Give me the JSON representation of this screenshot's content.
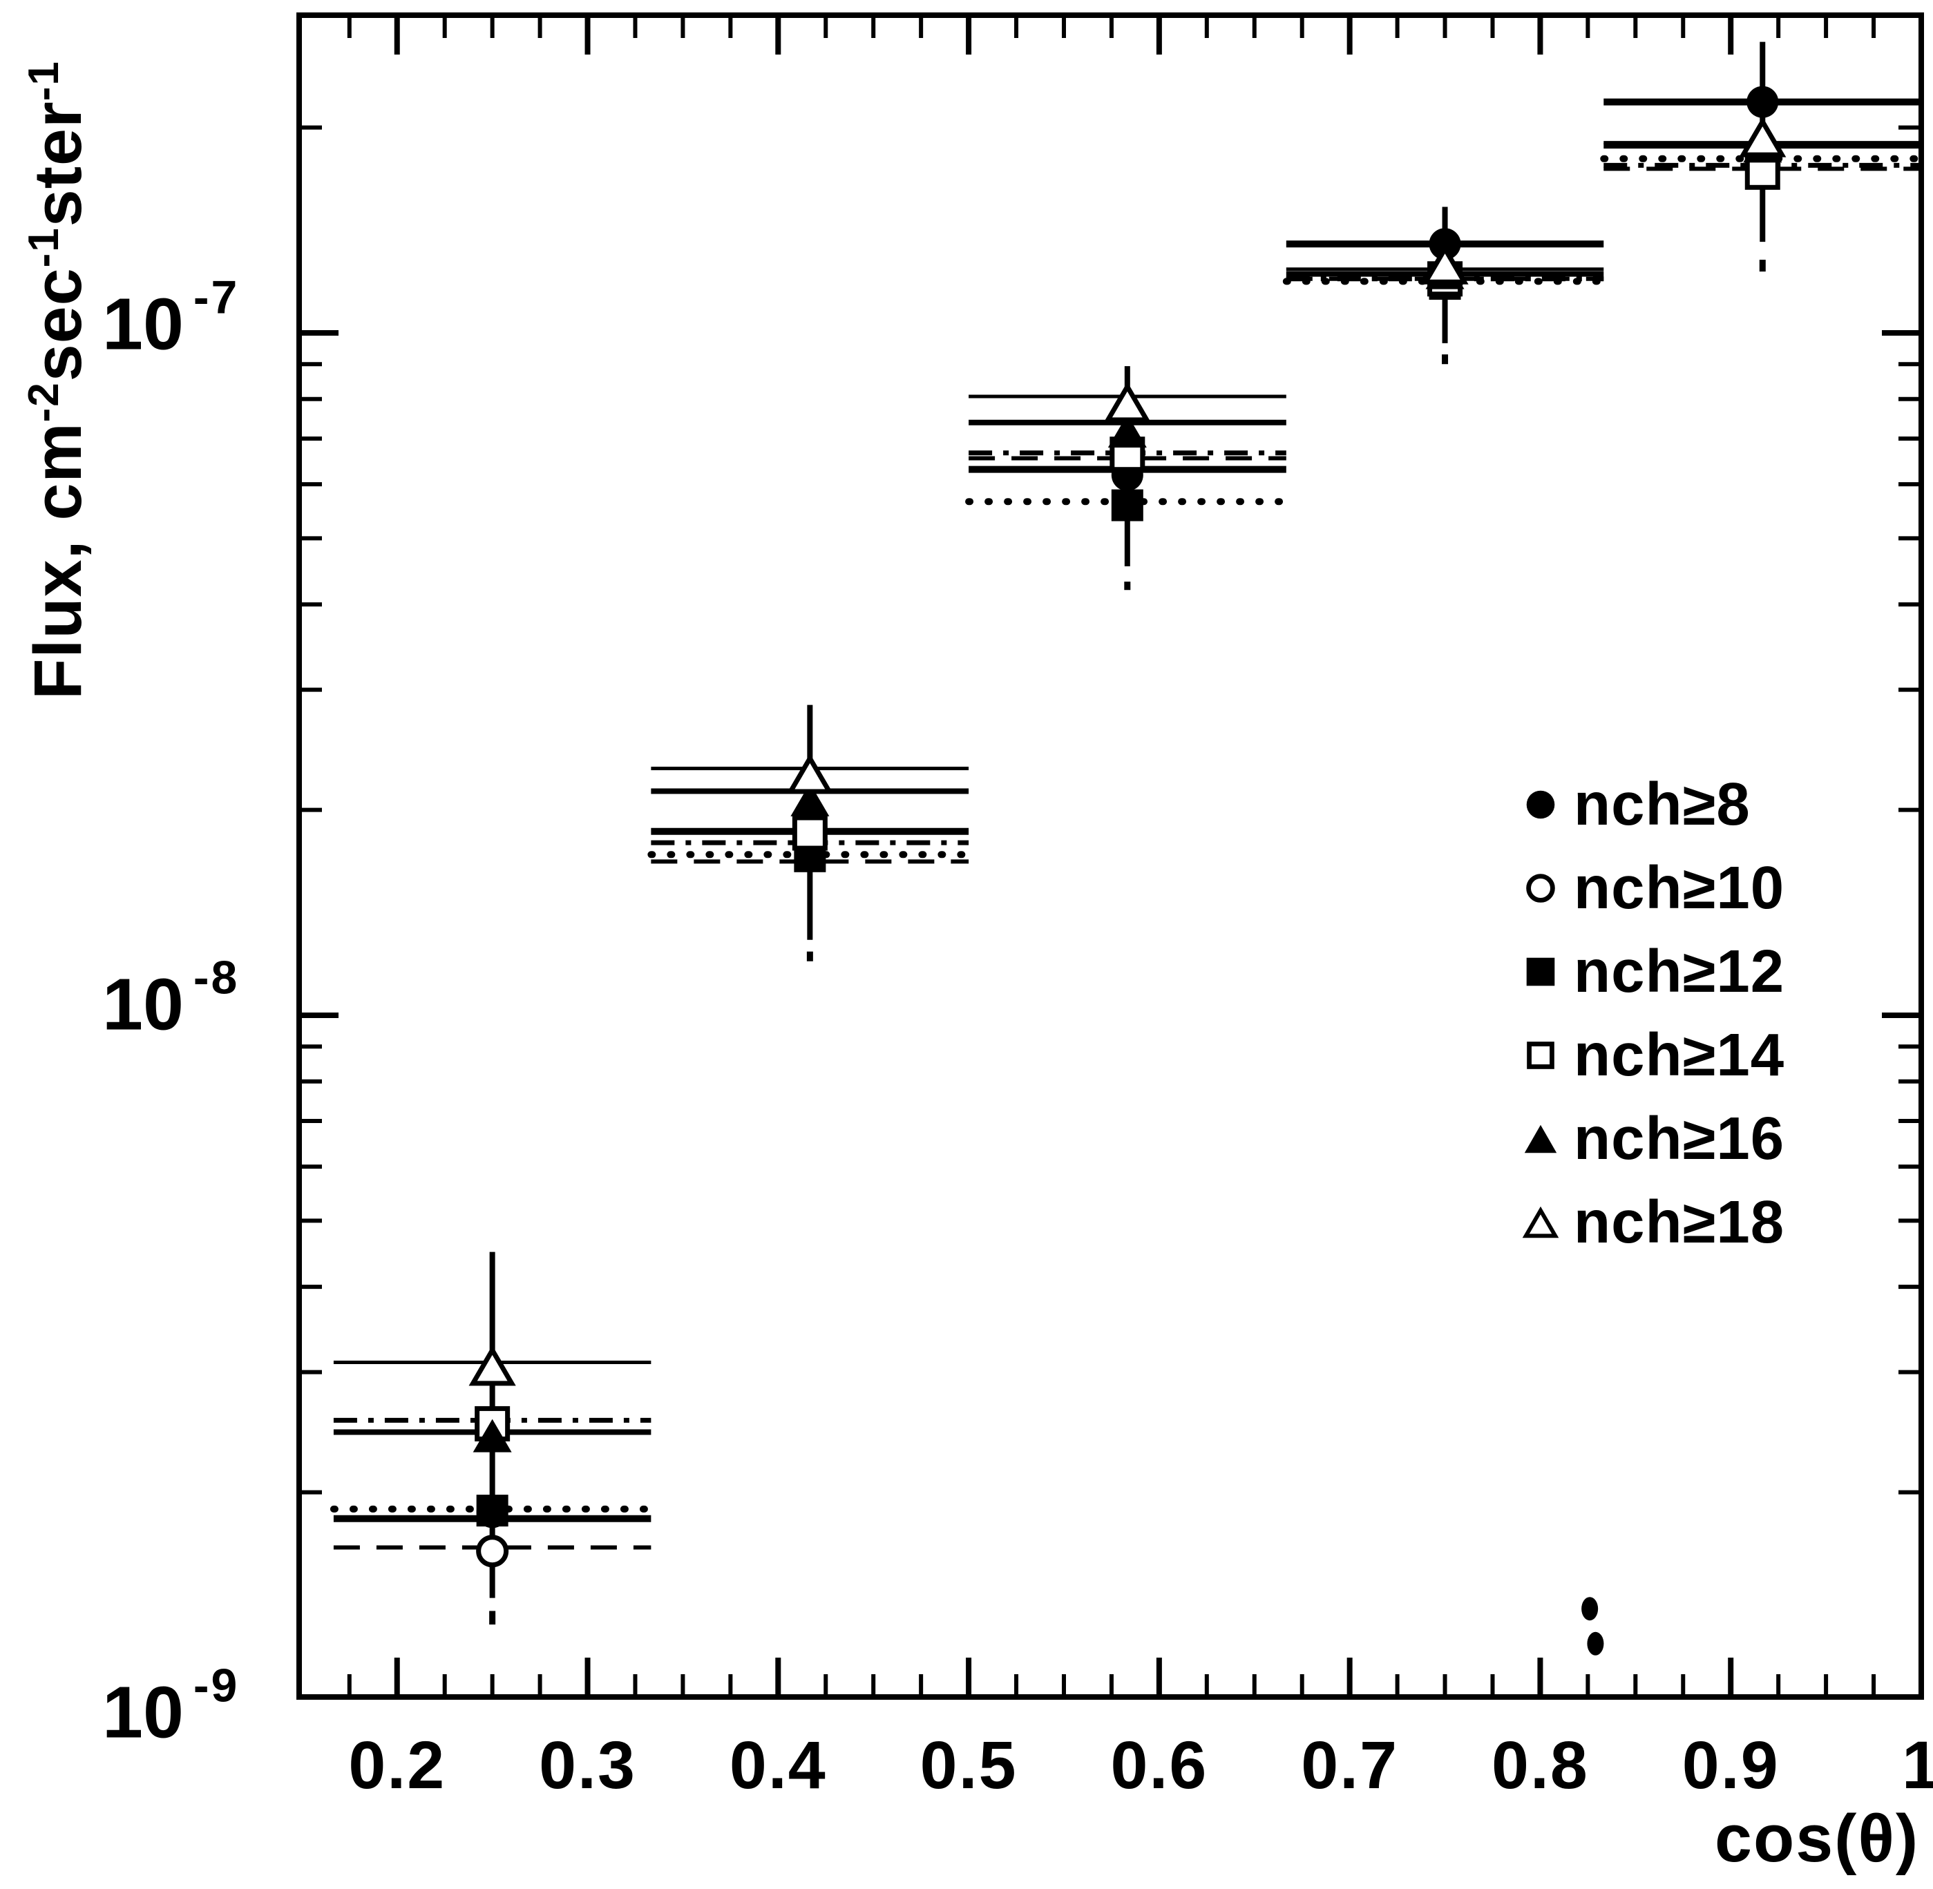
{
  "figure": {
    "background_color": "#ffffff",
    "ink_color": "#000000"
  },
  "y_axis": {
    "title": "Flux, cm⁻²sec⁻¹ster⁻¹",
    "title_parts": [
      {
        "text": "Flux, cm"
      },
      {
        "sup": "-2"
      },
      {
        "text": "sec"
      },
      {
        "sup": "-1"
      },
      {
        "text": "ster"
      },
      {
        "sup": "-1"
      }
    ],
    "scale": "log",
    "tick_labels": [
      {
        "base": "10",
        "exp": "-7",
        "value": 1e-07
      },
      {
        "base": "10",
        "exp": "-8",
        "value": 1e-08
      },
      {
        "base": "10",
        "exp": "-9",
        "value": 1e-09
      }
    ],
    "range": [
      9.7e-10,
      2.92e-07
    ]
  },
  "x_axis": {
    "title": "cos(θ)",
    "scale": "linear",
    "tick_labels": [
      "0.2",
      "0.3",
      "0.4",
      "0.5",
      "0.6",
      "0.7",
      "0.8",
      "0.9",
      "1"
    ],
    "tick_values": [
      0.2,
      0.3,
      0.4,
      0.5,
      0.6,
      0.7,
      0.8,
      0.9,
      1.0
    ],
    "minor_tick_step": 0.025,
    "range": [
      0.1486,
      1.0
    ]
  },
  "legend": {
    "position": "middle-right",
    "items": [
      {
        "label": "nch≥8",
        "marker": "filled-circle"
      },
      {
        "label": "nch≥10",
        "marker": "open-circle"
      },
      {
        "label": "nch≥12",
        "marker": "filled-square"
      },
      {
        "label": "nch≥14",
        "marker": "open-square"
      },
      {
        "label": "nch≥16",
        "marker": "filled-triangle"
      },
      {
        "label": "nch≥18",
        "marker": "open-triangle"
      }
    ]
  },
  "chart_data": {
    "type": "scatter",
    "xlabel": "cos(θ)",
    "ylabel": "Flux, cm⁻²sec⁻¹ster⁻¹",
    "x_bins": [
      [
        0.1667,
        0.3333
      ],
      [
        0.3333,
        0.5
      ],
      [
        0.5,
        0.6667
      ],
      [
        0.6667,
        0.8333
      ],
      [
        0.8333,
        1.0
      ]
    ],
    "x_centers": [
      0.25,
      0.4167,
      0.5833,
      0.75,
      0.9167
    ],
    "series": [
      {
        "name": "nch≥8",
        "marker": "filled-circle",
        "line_style": "solid-thick",
        "flux": [
          1.87e-09,
          1.8e-08,
          6.19e-08,
          1.35e-07,
          2.18e-07
        ],
        "line_flux": [
          1.83e-09,
          1.86e-08,
          6.31e-08,
          1.35e-07,
          2.18e-07
        ]
      },
      {
        "name": "nch≥10",
        "marker": "open-circle",
        "line_style": "dashed",
        "flux": [
          1.64e-09,
          1.77e-08,
          6.58e-08,
          1.19e-07,
          1.84e-07
        ],
        "line_flux": [
          1.66e-09,
          1.68e-08,
          6.55e-08,
          1.2e-07,
          1.74e-07
        ]
      },
      {
        "name": "nch≥12",
        "marker": "filled-square",
        "line_style": "dotted",
        "flux": [
          1.88e-09,
          1.71e-08,
          5.59e-08,
          1.18e-07,
          1.8e-07
        ],
        "line_flux": [
          1.89e-09,
          1.72e-08,
          5.66e-08,
          1.19e-07,
          1.8e-07
        ]
      },
      {
        "name": "nch≥14",
        "marker": "open-square",
        "line_style": "dash-dot",
        "flux": [
          2.52e-09,
          1.85e-08,
          6.64e-08,
          1.2e-07,
          1.72e-07
        ],
        "line_flux": [
          2.55e-09,
          1.79e-08,
          6.67e-08,
          1.2e-07,
          1.76e-07
        ]
      },
      {
        "name": "nch≥16",
        "marker": "filled-triangle",
        "line_style": "solid-med",
        "flux": [
          2.41e-09,
          2.06e-08,
          7.15e-08,
          1.22e-07,
          1.87e-07
        ],
        "line_flux": [
          2.45e-09,
          2.13e-08,
          7.39e-08,
          1.22e-07,
          1.88e-07
        ]
      },
      {
        "name": "nch≥18",
        "marker": "open-triangle",
        "line_style": "solid-thin",
        "flux": [
          3.04e-09,
          2.24e-08,
          7.85e-08,
          1.25e-07,
          1.92e-07
        ],
        "line_flux": [
          3.1e-09,
          2.3e-08,
          8.07e-08,
          1.24e-07,
          1.9e-07
        ]
      }
    ],
    "error_bars": [
      {
        "x": 0.25,
        "top": 4.5e-09,
        "bottom": 1.4e-09,
        "dash": [
          1.34e-09,
          1.28e-09
        ]
      },
      {
        "x": 0.4167,
        "top": 2.85e-08,
        "bottom": 1.29e-08,
        "dash": [
          1.24e-08,
          1.2e-08
        ]
      },
      {
        "x": 0.5833,
        "top": 8.94e-08,
        "bottom": 4.55e-08,
        "dash": [
          4.32e-08,
          4.2e-08
        ]
      },
      {
        "x": 0.75,
        "top": 1.53e-07,
        "bottom": 9.66e-08,
        "dash": [
          9.3e-08,
          9e-08
        ]
      },
      {
        "x": 0.9167,
        "top": 2.67e-07,
        "bottom": 1.36e-07,
        "dash": [
          1.28e-07,
          1.23e-07
        ]
      }
    ],
    "artifacts": [
      {
        "type": "ink-blot",
        "x": 0.826,
        "flux": 1.35e-09
      },
      {
        "type": "ink-blot",
        "x": 0.829,
        "flux": 1.2e-09
      }
    ],
    "grid": false,
    "legend_position": "middle-right"
  }
}
